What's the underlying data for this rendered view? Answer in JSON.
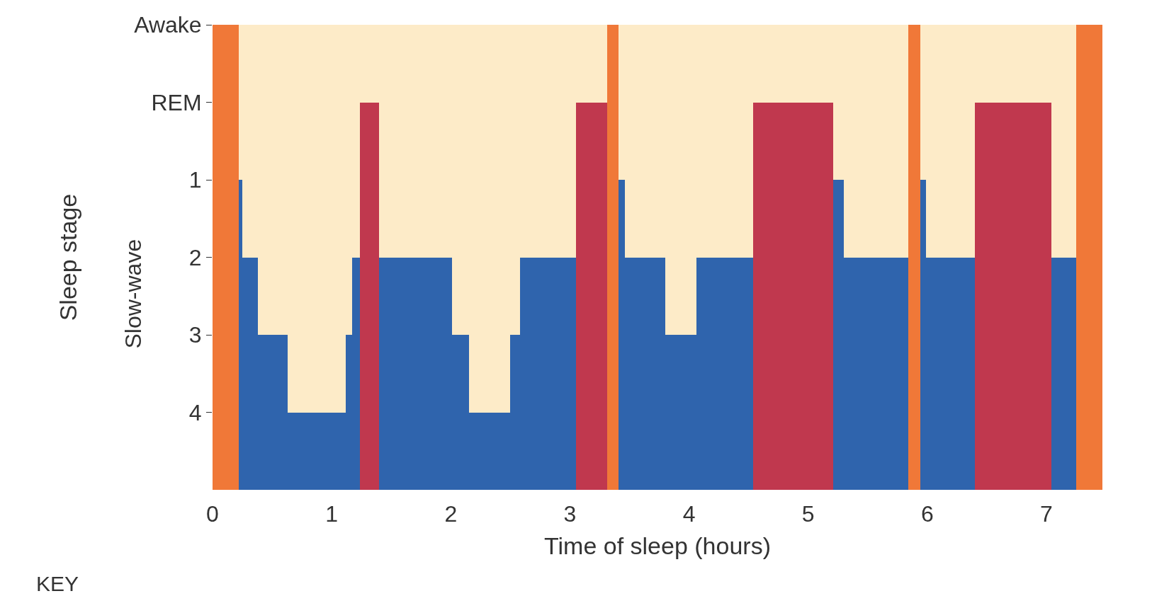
{
  "chart_data": {
    "type": "bar",
    "xlabel": "Time of sleep (hours)",
    "ylabel": "Sleep stage",
    "annotations": [
      "Slow-wave",
      "KEY"
    ],
    "x": [
      0.11,
      0.235,
      0.315,
      0.505,
      0.875,
      1.145,
      1.205,
      1.32,
      1.705,
      2.08,
      2.325,
      2.54,
      2.815,
      3.18,
      3.36,
      3.435,
      3.63,
      3.93,
      4.3,
      4.875,
      5.255,
      5.57,
      5.89,
      5.965,
      6.195,
      6.72,
      7.145,
      7.36
    ],
    "values": [
      -6,
      -4,
      -3,
      -2,
      -1,
      -2,
      -3,
      -5,
      -3,
      -2,
      -1,
      -2,
      -3,
      -5,
      -6,
      -4,
      -3,
      -2,
      -3,
      -5,
      -4,
      -3,
      -6,
      -4,
      -3,
      -5,
      -3,
      -6
    ],
    "base": [
      5,
      5,
      5,
      5,
      5,
      5,
      5,
      5,
      5,
      5,
      5,
      5,
      5,
      5,
      5,
      5,
      5,
      5,
      5,
      5,
      5,
      5,
      5,
      5,
      5,
      5,
      5,
      5
    ],
    "colors": [
      "#f07838",
      "#2f64ad",
      "#2f64ad",
      "#2f64ad",
      "#2f64ad",
      "#2f64ad",
      "#2f64ad",
      "#c0384e",
      "#2f64ad",
      "#2f64ad",
      "#2f64ad",
      "#2f64ad",
      "#2f64ad",
      "#c0384e",
      "#f07838",
      "#2f64ad",
      "#2f64ad",
      "#2f64ad",
      "#2f64ad",
      "#c0384e",
      "#2f64ad",
      "#2f64ad",
      "#f07838",
      "#2f64ad",
      "#2f64ad",
      "#c0384e",
      "#2f64ad",
      "#f07838"
    ],
    "xlim": [
      0,
      7.47
    ],
    "xticks": [
      0,
      1,
      2,
      3,
      4,
      5,
      6,
      7
    ],
    "ylim": [
      5,
      -1
    ],
    "yticks": [
      4,
      3,
      2,
      1,
      {
        "value": 0,
        "label": "REM"
      },
      {
        "value": -1,
        "label": "Awake"
      }
    ],
    "grid": false
  }
}
